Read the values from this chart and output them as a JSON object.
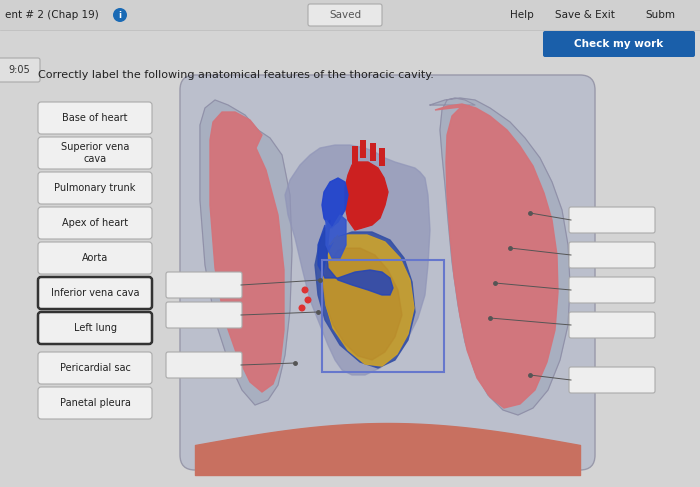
{
  "bg_color": "#d8d8d8",
  "title_text": "Correctly label the following anatomical features of the thoracic cavity.",
  "header_left": "ent # 2 (Chap 19)",
  "header_center": "Saved",
  "header_right_items": [
    "Help",
    "Save & Exit",
    "Subm"
  ],
  "check_btn_text": "Check my work",
  "check_btn_color": "#1a5faa",
  "timer_text": "9:05",
  "label_buttons": [
    "Base of heart",
    "Superior vena\ncava",
    "Pulmonary trunk",
    "Apex of heart",
    "Aorta",
    "Inferior vena cava",
    "Left lung",
    "Pericardial sac",
    "Panetal pleura"
  ],
  "label_btn_highlighted": [
    "Inferior vena cava",
    "Left lung"
  ],
  "figure_bg": "#d4d4d4",
  "thorax_bg": "#c8c8c8",
  "pleura_color": "#a8afc0",
  "lung_color": "#d4737a",
  "lung_highlight": "#e08888",
  "diaphragm_color": "#c87060",
  "pericardium_color": "#7080b0",
  "heart_color": "#b84040",
  "heart_gold": "#c8a030",
  "aorta_red": "#cc2020",
  "vena_blue": "#2255cc",
  "answer_box_color": "#eeeeee",
  "answer_box_edge": "#aaaaaa",
  "line_color": "#555555",
  "btn_bg": "#f0f0f0",
  "btn_edge": "#aaaaaa",
  "btn_edge_highlight": "#333333"
}
